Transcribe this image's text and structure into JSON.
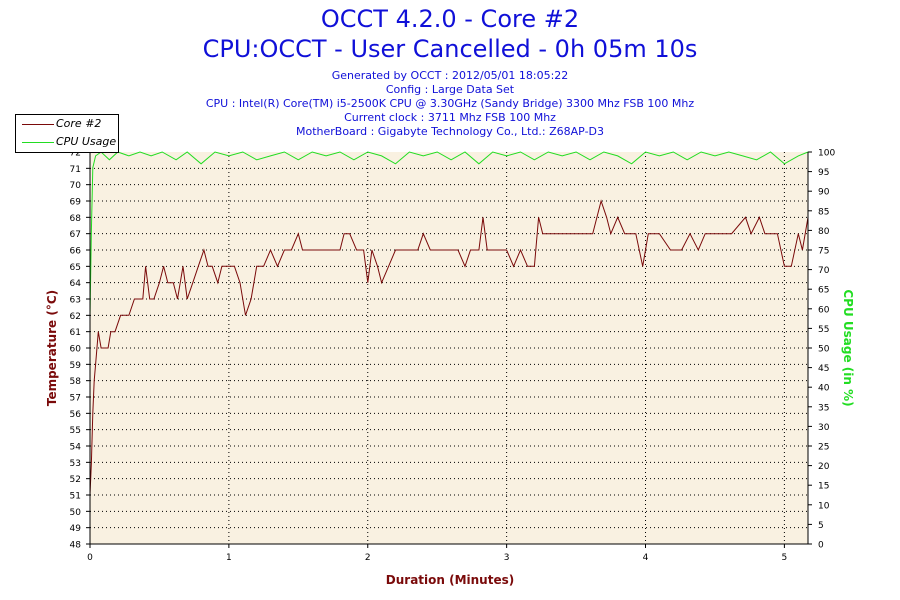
{
  "header": {
    "title": "OCCT 4.2.0 - Core #2",
    "subtitle": "CPU:OCCT - User Cancelled - 0h 05m 10s",
    "info_lines": [
      "Generated by OCCT : 2012/05/01 18:05:22",
      "Config : Large Data Set",
      "CPU : Intel(R) Core(TM) i5-2500K CPU @ 3.30GHz (Sandy Bridge) 3300 Mhz FSB 100 Mhz",
      "Current clock : 3711 Mhz FSB 100 Mhz",
      "MotherBoard : Gigabyte Technology Co., Ltd.: Z68AP-D3"
    ]
  },
  "colors": {
    "title": "#1010d8",
    "temperature": "#7a0a0a",
    "usage": "#22dd22",
    "plot_bg": "#f9f1e1"
  },
  "chart_data": {
    "type": "line",
    "xlabel": "Duration (Minutes)",
    "ylabel": "Temperature (°C)",
    "y2label": "CPU Usage (in %)",
    "xlim": [
      0,
      5.17
    ],
    "ylim": [
      48,
      72
    ],
    "y2lim": [
      0,
      100
    ],
    "x_ticks": [
      0,
      1,
      2,
      3,
      4,
      5
    ],
    "y_ticks": [
      48,
      49,
      50,
      51,
      52,
      53,
      54,
      55,
      56,
      57,
      58,
      59,
      60,
      61,
      62,
      63,
      64,
      65,
      66,
      67,
      68,
      69,
      70,
      71,
      72
    ],
    "y2_ticks": [
      0,
      5,
      10,
      15,
      20,
      25,
      30,
      35,
      40,
      45,
      50,
      55,
      60,
      65,
      70,
      75,
      80,
      85,
      90,
      95,
      100
    ],
    "grid": true,
    "legend_position": "top-left",
    "series": [
      {
        "name": "Core #2",
        "axis": "left",
        "points": [
          [
            0.0,
            51
          ],
          [
            0.01,
            53
          ],
          [
            0.02,
            56
          ],
          [
            0.03,
            58
          ],
          [
            0.04,
            59
          ],
          [
            0.06,
            61
          ],
          [
            0.08,
            60
          ],
          [
            0.1,
            60
          ],
          [
            0.13,
            60
          ],
          [
            0.15,
            61
          ],
          [
            0.18,
            61
          ],
          [
            0.22,
            62
          ],
          [
            0.25,
            62
          ],
          [
            0.28,
            62
          ],
          [
            0.32,
            63
          ],
          [
            0.35,
            63
          ],
          [
            0.38,
            63
          ],
          [
            0.4,
            65
          ],
          [
            0.43,
            63
          ],
          [
            0.46,
            63
          ],
          [
            0.5,
            64
          ],
          [
            0.53,
            65
          ],
          [
            0.56,
            64
          ],
          [
            0.6,
            64
          ],
          [
            0.63,
            63
          ],
          [
            0.67,
            65
          ],
          [
            0.7,
            63
          ],
          [
            0.74,
            64
          ],
          [
            0.78,
            65
          ],
          [
            0.82,
            66
          ],
          [
            0.85,
            65
          ],
          [
            0.88,
            65
          ],
          [
            0.92,
            64
          ],
          [
            0.95,
            65
          ],
          [
            1.0,
            65
          ],
          [
            1.04,
            65
          ],
          [
            1.08,
            64
          ],
          [
            1.12,
            62
          ],
          [
            1.16,
            63
          ],
          [
            1.2,
            65
          ],
          [
            1.25,
            65
          ],
          [
            1.3,
            66
          ],
          [
            1.35,
            65
          ],
          [
            1.4,
            66
          ],
          [
            1.45,
            66
          ],
          [
            1.5,
            67
          ],
          [
            1.53,
            66
          ],
          [
            1.6,
            66
          ],
          [
            1.7,
            66
          ],
          [
            1.8,
            66
          ],
          [
            1.83,
            67
          ],
          [
            1.87,
            67
          ],
          [
            1.92,
            66
          ],
          [
            1.97,
            66
          ],
          [
            2.0,
            64
          ],
          [
            2.03,
            66
          ],
          [
            2.07,
            65
          ],
          [
            2.1,
            64
          ],
          [
            2.15,
            65
          ],
          [
            2.2,
            66
          ],
          [
            2.3,
            66
          ],
          [
            2.36,
            66
          ],
          [
            2.4,
            67
          ],
          [
            2.45,
            66
          ],
          [
            2.55,
            66
          ],
          [
            2.65,
            66
          ],
          [
            2.7,
            65
          ],
          [
            2.74,
            66
          ],
          [
            2.8,
            66
          ],
          [
            2.83,
            68
          ],
          [
            2.86,
            66
          ],
          [
            2.95,
            66
          ],
          [
            3.0,
            66
          ],
          [
            3.05,
            65
          ],
          [
            3.1,
            66
          ],
          [
            3.15,
            65
          ],
          [
            3.2,
            65
          ],
          [
            3.23,
            68
          ],
          [
            3.26,
            67
          ],
          [
            3.35,
            67
          ],
          [
            3.5,
            67
          ],
          [
            3.62,
            67
          ],
          [
            3.68,
            69
          ],
          [
            3.72,
            68
          ],
          [
            3.75,
            67
          ],
          [
            3.8,
            68
          ],
          [
            3.85,
            67
          ],
          [
            3.93,
            67
          ],
          [
            3.98,
            65
          ],
          [
            4.02,
            67
          ],
          [
            4.1,
            67
          ],
          [
            4.18,
            66
          ],
          [
            4.26,
            66
          ],
          [
            4.32,
            67
          ],
          [
            4.38,
            66
          ],
          [
            4.43,
            67
          ],
          [
            4.5,
            67
          ],
          [
            4.57,
            67
          ],
          [
            4.62,
            67
          ],
          [
            4.72,
            68
          ],
          [
            4.76,
            67
          ],
          [
            4.82,
            68
          ],
          [
            4.86,
            67
          ],
          [
            4.95,
            67
          ],
          [
            5.0,
            65
          ],
          [
            5.05,
            65
          ],
          [
            5.1,
            67
          ],
          [
            5.13,
            66
          ],
          [
            5.17,
            68
          ]
        ]
      },
      {
        "name": "CPU Usage",
        "axis": "right",
        "points": [
          [
            0.0,
            58
          ],
          [
            0.01,
            80
          ],
          [
            0.02,
            96
          ],
          [
            0.04,
            99
          ],
          [
            0.08,
            100
          ],
          [
            0.14,
            98
          ],
          [
            0.2,
            100
          ],
          [
            0.28,
            99
          ],
          [
            0.36,
            100
          ],
          [
            0.44,
            99
          ],
          [
            0.52,
            100
          ],
          [
            0.62,
            98
          ],
          [
            0.7,
            100
          ],
          [
            0.8,
            97
          ],
          [
            0.9,
            100
          ],
          [
            1.0,
            99
          ],
          [
            1.1,
            100
          ],
          [
            1.2,
            98
          ],
          [
            1.3,
            99
          ],
          [
            1.4,
            100
          ],
          [
            1.5,
            98
          ],
          [
            1.6,
            100
          ],
          [
            1.7,
            99
          ],
          [
            1.8,
            100
          ],
          [
            1.9,
            98
          ],
          [
            2.0,
            100
          ],
          [
            2.1,
            99
          ],
          [
            2.2,
            97
          ],
          [
            2.3,
            100
          ],
          [
            2.4,
            99
          ],
          [
            2.5,
            100
          ],
          [
            2.6,
            98
          ],
          [
            2.7,
            100
          ],
          [
            2.8,
            97
          ],
          [
            2.9,
            100
          ],
          [
            3.0,
            99
          ],
          [
            3.1,
            100
          ],
          [
            3.2,
            98
          ],
          [
            3.3,
            100
          ],
          [
            3.4,
            99
          ],
          [
            3.5,
            100
          ],
          [
            3.6,
            98
          ],
          [
            3.7,
            100
          ],
          [
            3.8,
            99
          ],
          [
            3.9,
            97
          ],
          [
            4.0,
            100
          ],
          [
            4.1,
            99
          ],
          [
            4.2,
            100
          ],
          [
            4.3,
            98
          ],
          [
            4.4,
            100
          ],
          [
            4.5,
            99
          ],
          [
            4.6,
            100
          ],
          [
            4.7,
            99
          ],
          [
            4.8,
            98
          ],
          [
            4.9,
            100
          ],
          [
            5.0,
            97
          ],
          [
            5.1,
            99
          ],
          [
            5.17,
            100
          ]
        ]
      }
    ]
  }
}
